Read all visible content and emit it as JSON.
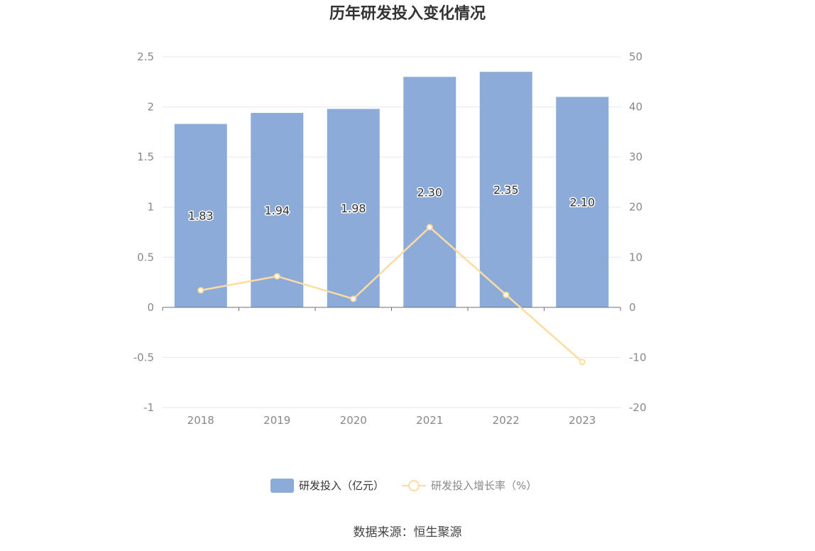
{
  "chart_data": {
    "type": "bar",
    "title": "历年研发投入变化情况",
    "categories": [
      "2018",
      "2019",
      "2020",
      "2021",
      "2022",
      "2023"
    ],
    "series": [
      {
        "name": "研发投入（亿元）",
        "type": "bar",
        "axis": "left",
        "values": [
          1.83,
          1.94,
          1.98,
          2.3,
          2.35,
          2.1
        ],
        "labels": [
          "1.83",
          "1.94",
          "1.98",
          "2.30",
          "2.35",
          "2.10"
        ],
        "color": "#8dabd9"
      },
      {
        "name": "研发投入增长率（%）",
        "type": "line",
        "axis": "right",
        "values": [
          3.4,
          6.2,
          1.7,
          16.0,
          2.5,
          -10.9
        ],
        "color": "#fddca0"
      }
    ],
    "y_left": {
      "ylim": [
        -1,
        2.5
      ],
      "ticks": [
        "2.5",
        "2",
        "1.5",
        "1",
        "0.5",
        "0",
        "-0.5",
        "-1"
      ],
      "tick_values": [
        2.5,
        2,
        1.5,
        1,
        0.5,
        0,
        -0.5,
        -1
      ]
    },
    "y_right": {
      "ylim": [
        -20,
        50
      ],
      "ticks": [
        "50",
        "40",
        "30",
        "20",
        "10",
        "0",
        "-10",
        "-20"
      ],
      "tick_values": [
        50,
        40,
        30,
        20,
        10,
        0,
        -10,
        -20
      ]
    },
    "grid": true,
    "legend_position": "bottom-center"
  },
  "source_text": "数据来源：恒生聚源"
}
